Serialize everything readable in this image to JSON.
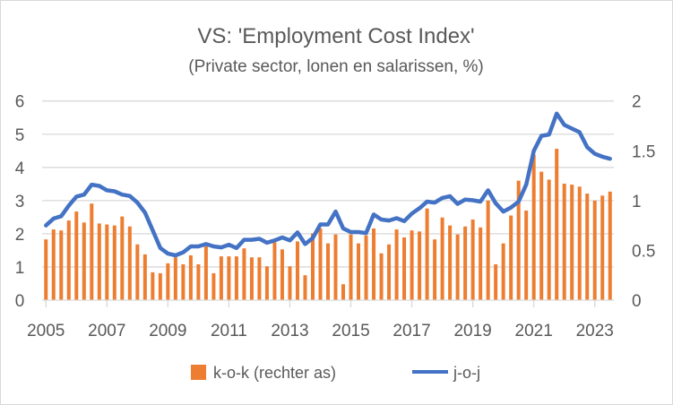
{
  "chart_data": {
    "type": "bar+line",
    "title": "VS: 'Employment Cost Index'",
    "subtitle": "(Private sector, lonen en salarissen, %)",
    "x_start": "2005Q1",
    "x_tick_labels": [
      "2005",
      "2007",
      "2009",
      "2011",
      "2013",
      "2015",
      "2017",
      "2019",
      "2021",
      "2023"
    ],
    "left_axis": {
      "ticks": [
        "0",
        "1",
        "2",
        "3",
        "4",
        "5",
        "6"
      ],
      "ylim": [
        0,
        6
      ]
    },
    "right_axis": {
      "ticks": [
        "0",
        "0.5",
        "1",
        "1.5",
        "2"
      ],
      "ylim": [
        0,
        2
      ]
    },
    "grid": true,
    "legend_position": "bottom",
    "series": [
      {
        "name": "k-o-k (rechter as)",
        "type": "bar",
        "axis": "right",
        "color": "#ED7D31",
        "values": [
          0.61,
          0.71,
          0.7,
          0.8,
          0.89,
          0.78,
          0.97,
          0.77,
          0.76,
          0.75,
          0.84,
          0.74,
          0.56,
          0.46,
          0.28,
          0.27,
          0.37,
          0.43,
          0.36,
          0.45,
          0.36,
          0.54,
          0.27,
          0.44,
          0.44,
          0.44,
          0.52,
          0.43,
          0.43,
          0.34,
          0.58,
          0.51,
          0.34,
          0.59,
          0.25,
          0.67,
          0.72,
          0.57,
          0.66,
          0.16,
          0.66,
          0.57,
          0.65,
          0.72,
          0.47,
          0.56,
          0.71,
          0.63,
          0.7,
          0.69,
          0.92,
          0.61,
          0.83,
          0.75,
          0.66,
          0.74,
          0.81,
          0.73,
          1.0,
          0.36,
          0.57,
          0.85,
          1.2,
          0.9,
          1.46,
          1.29,
          1.21,
          1.52,
          1.17,
          1.16,
          1.14,
          1.07,
          1.0,
          1.05,
          1.09
        ]
      },
      {
        "name": "j-o-j",
        "type": "line",
        "axis": "left",
        "color": "#4472C4",
        "values": [
          2.25,
          2.46,
          2.53,
          2.85,
          3.12,
          3.18,
          3.48,
          3.44,
          3.31,
          3.28,
          3.18,
          3.14,
          2.94,
          2.64,
          2.11,
          1.57,
          1.4,
          1.35,
          1.44,
          1.62,
          1.62,
          1.69,
          1.62,
          1.59,
          1.67,
          1.57,
          1.82,
          1.82,
          1.85,
          1.73,
          1.8,
          1.89,
          1.8,
          2.04,
          1.69,
          1.87,
          2.28,
          2.28,
          2.67,
          2.16,
          2.05,
          2.05,
          2.02,
          2.58,
          2.43,
          2.4,
          2.47,
          2.38,
          2.61,
          2.77,
          2.97,
          2.94,
          3.08,
          3.13,
          2.9,
          3.03,
          3.01,
          2.97,
          3.31,
          2.92,
          2.67,
          2.79,
          2.97,
          3.48,
          4.5,
          4.95,
          4.99,
          5.62,
          5.28,
          5.17,
          5.06,
          4.61,
          4.41,
          4.32,
          4.26
        ]
      }
    ]
  }
}
